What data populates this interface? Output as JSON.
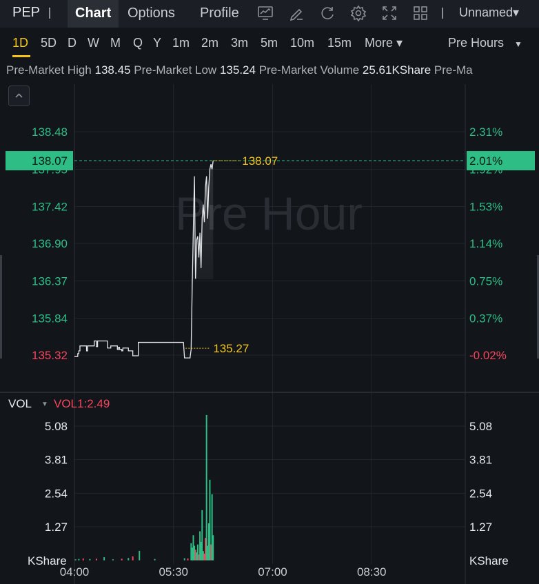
{
  "header": {
    "symbol": "PEP",
    "tabs": [
      "Chart",
      "Options",
      "Profile"
    ],
    "active_tab": "Chart",
    "layout_name": "Unnamed▾"
  },
  "intervals": {
    "items": [
      "1D",
      "5D",
      "D",
      "W",
      "M",
      "Q",
      "Y",
      "1m",
      "2m",
      "3m",
      "5m",
      "10m",
      "15m",
      "More ▾"
    ],
    "active": "1D",
    "session_select": "Pre Hours"
  },
  "info": {
    "items": [
      {
        "label": "Pre-Market High",
        "value": "138.45"
      },
      {
        "label": "Pre-Market Low",
        "value": "135.24"
      },
      {
        "label": "Pre-Market Volume",
        "value": "25.61KShare"
      },
      {
        "label": "Pre-Ma",
        "value": ""
      }
    ]
  },
  "colors": {
    "up": "#2ebd85",
    "down": "#f6465d",
    "highlight": "#f5c518",
    "price_line": "#e6e8eb"
  },
  "chart_data": {
    "type": "line",
    "watermark": "Pre Hour",
    "price_axis": {
      "left_ticks": [
        "138.48",
        "137.95",
        "137.42",
        "136.90",
        "136.37",
        "135.84",
        "135.32"
      ],
      "right_ticks": [
        "2.31%",
        "1.92%",
        "1.53%",
        "1.14%",
        "0.75%",
        "0.37%",
        "-0.02%"
      ],
      "current_price": "138.07",
      "current_pct": "2.01%",
      "high_label": "138.07",
      "low_label": "135.27"
    },
    "x_ticks": [
      "04:00",
      "05:30",
      "07:00",
      "08:30"
    ],
    "price_series": [
      [
        0,
        135.3
      ],
      [
        3,
        135.34
      ],
      [
        4,
        135.38
      ],
      [
        5,
        135.45
      ],
      [
        10,
        135.45
      ],
      [
        11,
        135.38
      ],
      [
        12,
        135.45
      ],
      [
        17,
        135.45
      ],
      [
        18,
        135.52
      ],
      [
        19,
        135.52
      ],
      [
        20,
        135.44
      ],
      [
        21,
        135.52
      ],
      [
        29,
        135.52
      ],
      [
        30,
        135.42
      ],
      [
        32,
        135.42
      ],
      [
        33,
        135.45
      ],
      [
        38,
        135.45
      ],
      [
        39,
        135.4
      ],
      [
        40,
        135.43
      ],
      [
        41,
        135.4
      ],
      [
        43,
        135.38
      ],
      [
        44,
        135.42
      ],
      [
        48,
        135.42
      ],
      [
        49,
        135.38
      ],
      [
        52,
        135.38
      ],
      [
        53,
        135.31
      ],
      [
        57,
        135.31
      ],
      [
        58,
        135.5
      ],
      [
        99,
        135.5
      ],
      [
        100,
        135.28
      ],
      [
        105,
        135.28
      ],
      [
        106,
        135.4
      ],
      [
        107,
        136.3
      ],
      [
        108,
        137.1
      ],
      [
        109,
        137.85
      ],
      [
        110,
        136.4
      ],
      [
        111,
        136.95
      ],
      [
        112,
        137.0
      ],
      [
        113,
        136.7
      ],
      [
        114,
        137.05
      ],
      [
        115,
        136.55
      ],
      [
        116,
        137.25
      ],
      [
        117,
        137.45
      ],
      [
        118,
        137.2
      ],
      [
        119,
        137.7
      ],
      [
        120,
        137.85
      ],
      [
        121,
        137.25
      ],
      [
        122,
        137.7
      ],
      [
        123,
        137.95
      ],
      [
        124,
        138.02
      ],
      [
        125,
        137.95
      ],
      [
        126,
        138.07
      ]
    ],
    "volume_axis": {
      "label": "VOL",
      "indicator": "VOL1:2.49",
      "ticks": [
        "5.08",
        "3.81",
        "2.54",
        "1.27"
      ],
      "unit": "KShare"
    },
    "volume_series": [
      {
        "m": 1,
        "v": 0.04,
        "up": true
      },
      {
        "m": 4,
        "v": 0.05,
        "up": true
      },
      {
        "m": 8,
        "v": 0.07,
        "up": false
      },
      {
        "m": 14,
        "v": 0.05,
        "up": true
      },
      {
        "m": 20,
        "v": 0.06,
        "up": false
      },
      {
        "m": 27,
        "v": 0.12,
        "up": true
      },
      {
        "m": 35,
        "v": 0.04,
        "up": true
      },
      {
        "m": 43,
        "v": 0.06,
        "up": false
      },
      {
        "m": 49,
        "v": 0.09,
        "up": true
      },
      {
        "m": 53,
        "v": 0.15,
        "up": false
      },
      {
        "m": 59,
        "v": 0.36,
        "up": true
      },
      {
        "m": 73,
        "v": 0.05,
        "up": true
      },
      {
        "m": 100,
        "v": 0.08,
        "up": true
      },
      {
        "m": 103,
        "v": 0.07,
        "up": false
      },
      {
        "m": 106,
        "v": 0.65,
        "up": true
      },
      {
        "m": 107,
        "v": 0.48,
        "up": true
      },
      {
        "m": 108,
        "v": 0.95,
        "up": true
      },
      {
        "m": 109,
        "v": 0.55,
        "up": true
      },
      {
        "m": 110,
        "v": 0.4,
        "up": false
      },
      {
        "m": 111,
        "v": 0.3,
        "up": true
      },
      {
        "m": 112,
        "v": 0.6,
        "up": true
      },
      {
        "m": 113,
        "v": 0.22,
        "up": false
      },
      {
        "m": 114,
        "v": 1.1,
        "up": true
      },
      {
        "m": 115,
        "v": 0.7,
        "up": true
      },
      {
        "m": 116,
        "v": 1.9,
        "up": true
      },
      {
        "m": 117,
        "v": 0.35,
        "up": true
      },
      {
        "m": 118,
        "v": 0.25,
        "up": false
      },
      {
        "m": 119,
        "v": 0.85,
        "up": false
      },
      {
        "m": 120,
        "v": 5.5,
        "up": true
      },
      {
        "m": 121,
        "v": 0.55,
        "up": true
      },
      {
        "m": 122,
        "v": 1.4,
        "up": true
      },
      {
        "m": 123,
        "v": 3.05,
        "up": true
      },
      {
        "m": 124,
        "v": 0.6,
        "up": false
      },
      {
        "m": 125,
        "v": 2.5,
        "up": true
      },
      {
        "m": 126,
        "v": 0.95,
        "up": true
      }
    ]
  }
}
